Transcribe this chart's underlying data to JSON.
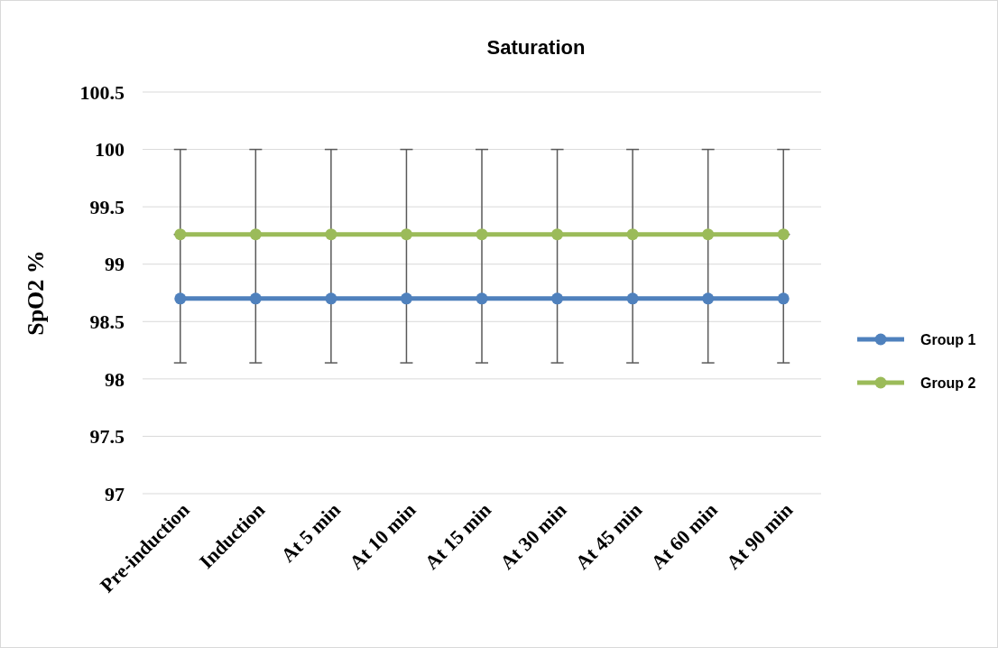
{
  "chart_data": {
    "type": "line",
    "title": "Saturation",
    "ylabel": "SpO2 %",
    "categories": [
      "Pre-induction",
      "Induction",
      "At 5 min",
      "At 10 min",
      "At 15 min",
      "At 30 min",
      "At 45 min",
      "At 60 min",
      "At 90 min"
    ],
    "series": [
      {
        "name": "Group 1",
        "color": "#4f81bd",
        "values": [
          98.7,
          98.7,
          98.7,
          98.7,
          98.7,
          98.7,
          98.7,
          98.7,
          98.7
        ],
        "errors": [
          0.56,
          0.56,
          0.56,
          0.56,
          0.56,
          0.56,
          0.56,
          0.56,
          0.56
        ]
      },
      {
        "name": "Group 2",
        "color": "#9bbb59",
        "values": [
          99.26,
          99.26,
          99.26,
          99.26,
          99.26,
          99.26,
          99.26,
          99.26,
          99.26
        ],
        "errors": [
          [
            99.26,
            100
          ],
          [
            99.26,
            100
          ],
          [
            99.26,
            100
          ],
          [
            99.26,
            100
          ],
          [
            99.26,
            100
          ],
          [
            99.26,
            100
          ],
          [
            99.26,
            100
          ],
          [
            99.26,
            100
          ],
          [
            99.26,
            100
          ]
        ]
      }
    ],
    "ylim": [
      97,
      100.5
    ],
    "yticks": [
      97,
      97.5,
      98,
      98.5,
      99,
      99.5,
      100,
      100.5
    ],
    "grid": "y",
    "legend": "right",
    "marker": "circle",
    "line_style": "solid"
  }
}
